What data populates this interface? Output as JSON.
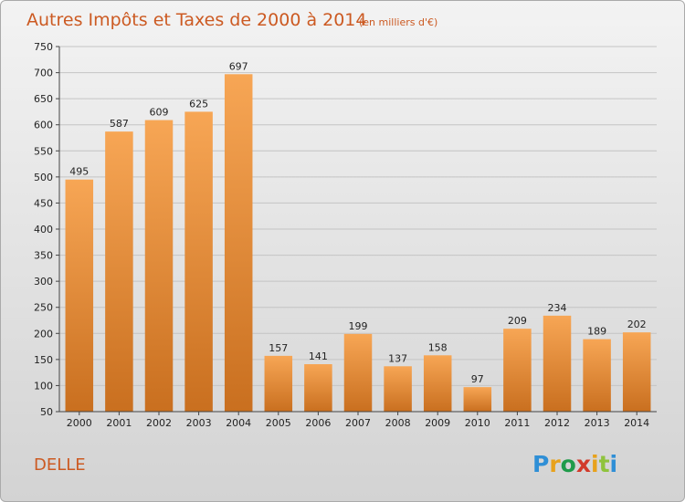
{
  "chart_data": {
    "type": "bar",
    "title": "Autres Impôts et Taxes de 2000 à 2014",
    "subtitle": "(en milliers d'€)",
    "categories": [
      "2000",
      "2001",
      "2002",
      "2003",
      "2004",
      "2005",
      "2006",
      "2007",
      "2008",
      "2009",
      "2010",
      "2011",
      "2012",
      "2013",
      "2014"
    ],
    "values": [
      495,
      587,
      609,
      625,
      697,
      157,
      141,
      199,
      137,
      158,
      97,
      209,
      234,
      189,
      202
    ],
    "ylim": [
      50,
      750
    ],
    "yticks": [
      50,
      100,
      150,
      200,
      250,
      300,
      350,
      400,
      450,
      500,
      550,
      600,
      650,
      700,
      750
    ],
    "grid": true,
    "bar_color_top": "#f7a655",
    "bar_color_bottom": "#c96f1f"
  },
  "place": "DELLE",
  "logo": {
    "letters": [
      "P",
      "r",
      "o",
      "x",
      "i",
      "t",
      "i"
    ],
    "colors": [
      "#2f8fd6",
      "#e8a21c",
      "#1f9b4a",
      "#d23a2a",
      "#e8a21c",
      "#8fc33d",
      "#2f8fd6"
    ]
  }
}
